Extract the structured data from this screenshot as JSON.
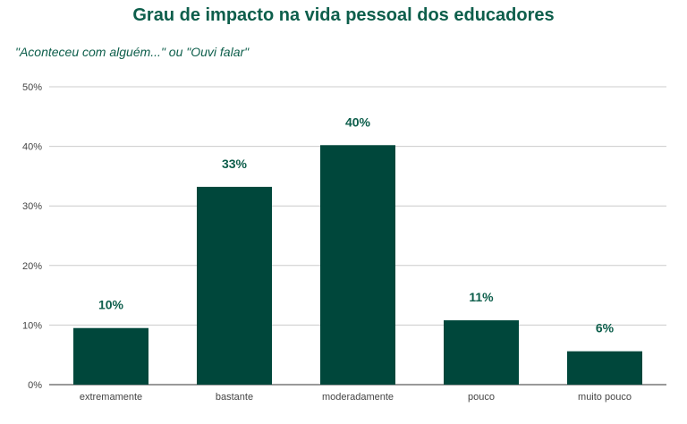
{
  "chart_data": {
    "type": "bar",
    "title": "Grau de impacto na vida pessoal dos educadores",
    "subtitle": "\"Aconteceu com alguém...\" ou \"Ouvi falar\"",
    "xlabel": "",
    "ylabel": "",
    "categories": [
      "extremamente",
      "bastante",
      "moderadamente",
      "pouco",
      "muito pouco"
    ],
    "values": [
      9.5,
      33.2,
      40.2,
      10.8,
      5.6
    ],
    "data_labels": [
      "10%",
      "33%",
      "40%",
      "11%",
      "6%"
    ],
    "ylim": [
      0,
      50
    ],
    "yticks": [
      0,
      10,
      20,
      30,
      40,
      50
    ],
    "ytick_labels": [
      "0%",
      "10%",
      "20%",
      "30%",
      "40%",
      "50%"
    ],
    "grid": true,
    "bar_color": "#00473b",
    "label_color": "#0d5e4b"
  }
}
